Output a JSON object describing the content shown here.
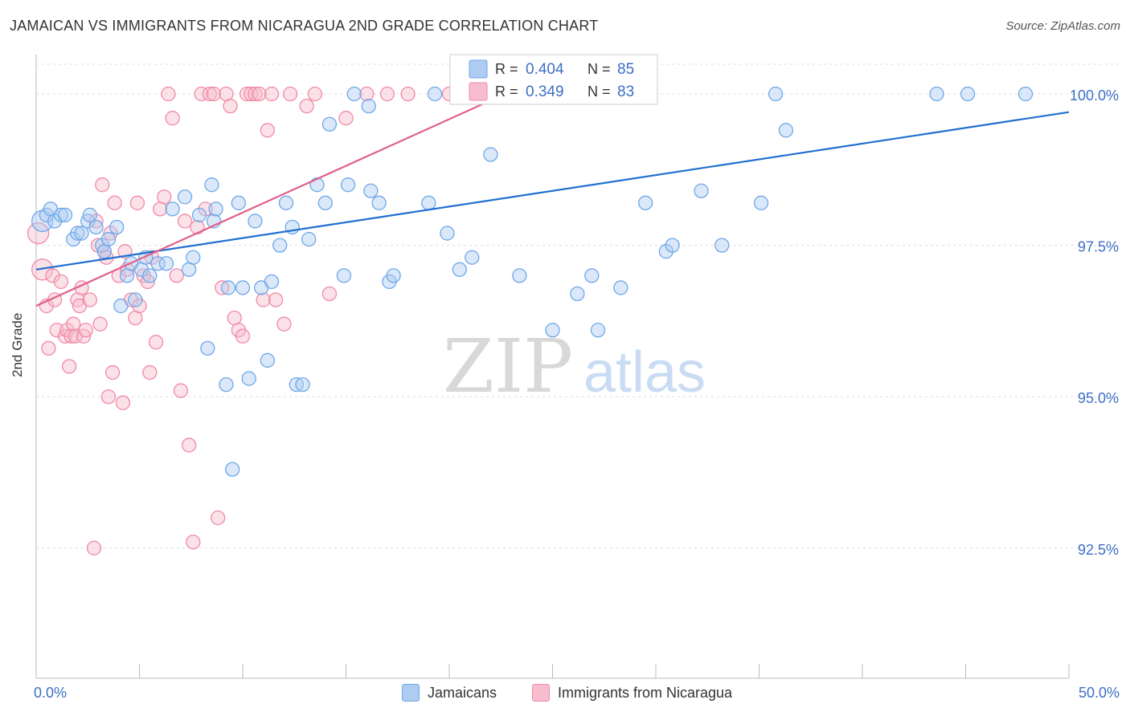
{
  "title": "JAMAICAN VS IMMIGRANTS FROM NICARAGUA 2ND GRADE CORRELATION CHART",
  "source": "Source: ZipAtlas.com",
  "watermark": {
    "zip": "ZIP",
    "atlas": "atlas"
  },
  "colors": {
    "blue": "#6fa8e8",
    "blue_fill": "#aecbf2",
    "blue_line": "#1f6fd0",
    "pink": "#f08aa8",
    "pink_fill": "#f7bccd",
    "pink_line": "#e0608a",
    "tick_text": "#3d6fc4",
    "grid": "#dddddd"
  },
  "legend_box": {
    "rows": [
      {
        "r_label": "R =",
        "r_value": "0.404",
        "n_label": "N =",
        "n_value": "85"
      },
      {
        "r_label": "R =",
        "r_value": "0.349",
        "n_label": "N =",
        "n_value": "83"
      }
    ]
  },
  "legend_bottom": {
    "series1": "Jamaicans",
    "series2": "Immigrants from Nicaragua"
  },
  "chart_data": {
    "type": "scatter",
    "title": "JAMAICAN VS IMMIGRANTS FROM NICARAGUA 2ND GRADE CORRELATION CHART",
    "xlabel": "",
    "ylabel": "2nd Grade",
    "xlim": [
      0,
      50
    ],
    "ylim": [
      90.35,
      100.65
    ],
    "x_tick_labels": [
      "0.0%",
      "50.0%"
    ],
    "y_ticks": [
      92.5,
      95.0,
      97.5,
      100.0
    ],
    "y_tick_labels": [
      "92.5%",
      "95.0%",
      "97.5%",
      "100.0%"
    ],
    "grid": true,
    "series": [
      {
        "name": "Jamaicans",
        "R": 0.404,
        "N": 85,
        "trend": [
          [
            0,
            97.1
          ],
          [
            50,
            99.7
          ]
        ],
        "x": [
          0.3,
          0.5,
          0.7,
          0.9,
          1.2,
          1.4,
          1.8,
          2.0,
          2.2,
          2.5,
          2.6,
          2.9,
          3.2,
          3.3,
          3.5,
          3.9,
          4.1,
          4.4,
          4.6,
          4.8,
          5.1,
          5.3,
          5.5,
          5.9,
          6.3,
          6.6,
          7.2,
          7.4,
          7.6,
          7.9,
          8.3,
          8.5,
          8.6,
          8.7,
          9.2,
          9.3,
          9.5,
          9.8,
          10.0,
          10.3,
          10.6,
          10.9,
          11.2,
          11.4,
          11.8,
          12.1,
          12.4,
          12.6,
          12.9,
          13.2,
          13.6,
          14.0,
          14.2,
          14.9,
          15.1,
          15.4,
          16.1,
          16.2,
          16.6,
          17.1,
          17.3,
          19.0,
          19.3,
          19.9,
          20.5,
          21.1,
          22.0,
          22.4,
          23.4,
          25.0,
          26.2,
          26.9,
          27.2,
          28.3,
          29.5,
          30.5,
          30.8,
          32.2,
          33.2,
          35.1,
          35.8,
          36.3,
          43.6,
          45.1,
          47.9
        ],
        "y": [
          97.9,
          98.0,
          98.1,
          97.9,
          98.0,
          98.0,
          97.6,
          97.7,
          97.7,
          97.9,
          98.0,
          97.8,
          97.5,
          97.4,
          97.6,
          97.8,
          96.5,
          97.0,
          97.2,
          96.6,
          97.1,
          97.3,
          97.0,
          97.2,
          97.2,
          98.1,
          98.3,
          97.1,
          97.3,
          98.0,
          95.8,
          98.5,
          97.9,
          98.1,
          95.2,
          96.8,
          93.8,
          98.2,
          96.8,
          95.3,
          97.9,
          96.8,
          95.6,
          96.9,
          97.5,
          98.2,
          97.8,
          95.2,
          95.2,
          97.6,
          98.5,
          98.2,
          99.5,
          97.0,
          98.5,
          100.0,
          99.8,
          98.4,
          98.2,
          96.9,
          97.0,
          98.2,
          100.0,
          97.7,
          97.1,
          97.3,
          99.0,
          100.0,
          97.0,
          96.1,
          96.7,
          97.0,
          96.1,
          96.8,
          98.2,
          97.4,
          97.5,
          98.4,
          97.5,
          98.2,
          100.0,
          99.4,
          100.0,
          100.0,
          100.0
        ]
      },
      {
        "name": "Immigrants from Nicaragua",
        "R": 0.349,
        "N": 83,
        "trend": [
          [
            0,
            96.5
          ],
          [
            24,
            100.2
          ]
        ],
        "x": [
          0.1,
          0.3,
          0.5,
          0.6,
          0.8,
          0.9,
          1.0,
          1.2,
          1.4,
          1.5,
          1.6,
          1.7,
          1.8,
          1.9,
          2.0,
          2.1,
          2.2,
          2.3,
          2.4,
          2.6,
          2.8,
          2.9,
          3.0,
          3.1,
          3.2,
          3.3,
          3.4,
          3.5,
          3.6,
          3.7,
          3.8,
          4.0,
          4.2,
          4.3,
          4.4,
          4.6,
          4.8,
          4.9,
          5.0,
          5.2,
          5.4,
          5.5,
          5.6,
          5.8,
          6.0,
          6.2,
          6.4,
          6.6,
          6.8,
          7.0,
          7.2,
          7.4,
          7.6,
          7.8,
          8.0,
          8.2,
          8.4,
          8.6,
          8.8,
          9.0,
          9.2,
          9.4,
          9.6,
          9.8,
          10.0,
          10.2,
          10.4,
          10.6,
          10.8,
          11.0,
          11.2,
          11.4,
          11.6,
          12.0,
          12.3,
          13.1,
          13.5,
          14.2,
          15.0,
          16.0,
          17.0,
          18.0,
          20.0
        ],
        "y": [
          97.7,
          97.1,
          96.5,
          95.8,
          97.0,
          96.6,
          96.1,
          96.9,
          96.0,
          96.1,
          95.5,
          96.0,
          96.2,
          96.0,
          96.6,
          96.5,
          96.8,
          96.0,
          96.1,
          96.6,
          92.5,
          97.9,
          97.5,
          96.2,
          98.5,
          97.4,
          97.3,
          95.0,
          97.7,
          95.4,
          98.2,
          97.0,
          94.9,
          97.4,
          97.1,
          96.6,
          96.3,
          98.2,
          96.5,
          97.0,
          96.9,
          95.4,
          97.3,
          95.9,
          98.1,
          98.3,
          100.0,
          99.6,
          97.0,
          95.1,
          97.9,
          94.2,
          92.6,
          97.8,
          100.0,
          98.1,
          100.0,
          100.0,
          93.0,
          96.8,
          100.0,
          99.8,
          96.3,
          96.1,
          96.0,
          100.0,
          100.0,
          100.0,
          100.0,
          96.6,
          99.4,
          100.0,
          96.6,
          96.2,
          100.0,
          99.8,
          100.0,
          96.7,
          99.6,
          100.0,
          100.0,
          100.0,
          100.0
        ]
      }
    ]
  }
}
